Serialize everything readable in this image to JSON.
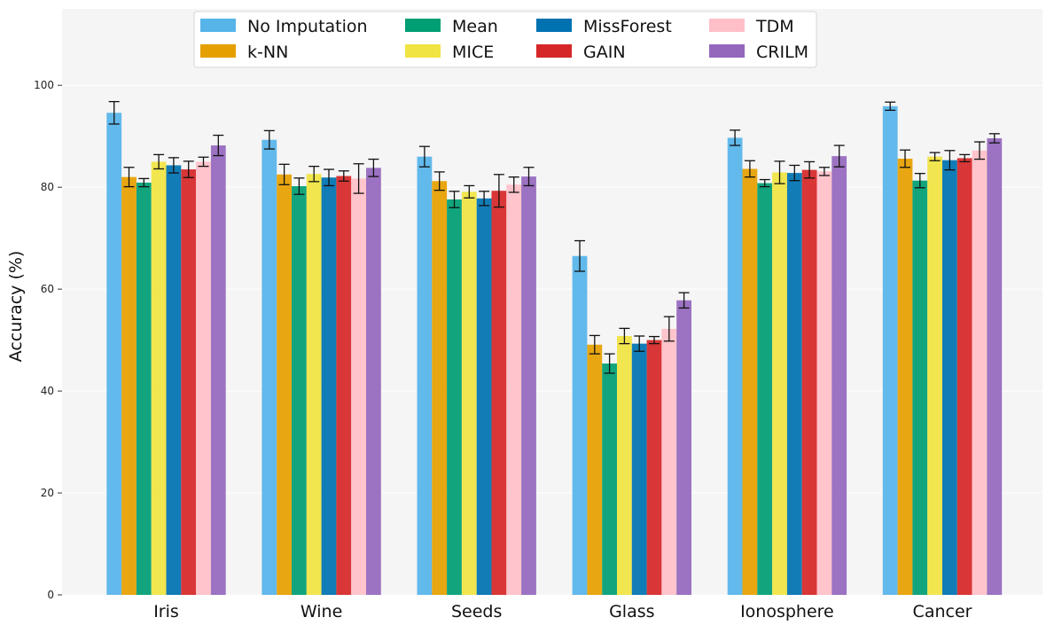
{
  "chart_data": {
    "type": "bar",
    "title": "",
    "xlabel": "",
    "ylabel": "Accuracy (%)",
    "ylim": [
      0,
      115
    ],
    "yticks": [
      0,
      20,
      40,
      60,
      80,
      100
    ],
    "grid": true,
    "legend_position": "top-center",
    "categories": [
      "Iris",
      "Wine",
      "Seeds",
      "Glass",
      "Ionosphere",
      "Cancer"
    ],
    "series": [
      {
        "name": "No Imputation",
        "color": "#56B4E9",
        "values": [
          94.6,
          89.3,
          86.0,
          66.5,
          89.7,
          95.9
        ],
        "errors": [
          2.2,
          1.8,
          2.0,
          3.0,
          1.5,
          0.8
        ]
      },
      {
        "name": "k-NN",
        "color": "#E69F00",
        "values": [
          82.0,
          82.5,
          81.2,
          49.1,
          83.6,
          85.6
        ],
        "errors": [
          1.9,
          2.0,
          1.8,
          1.8,
          1.6,
          1.7
        ]
      },
      {
        "name": "Mean",
        "color": "#009E73",
        "values": [
          80.9,
          80.2,
          77.6,
          45.4,
          80.8,
          81.3
        ],
        "errors": [
          0.8,
          1.6,
          1.6,
          1.9,
          0.7,
          1.4
        ]
      },
      {
        "name": "MICE",
        "color": "#F0E442",
        "values": [
          85.0,
          82.6,
          79.1,
          50.8,
          82.9,
          86.0
        ],
        "errors": [
          1.4,
          1.5,
          1.2,
          1.5,
          2.2,
          0.8
        ]
      },
      {
        "name": "MissForest",
        "color": "#0072B2",
        "values": [
          84.3,
          81.9,
          77.8,
          49.3,
          82.8,
          85.3
        ],
        "errors": [
          1.5,
          1.6,
          1.4,
          1.5,
          1.5,
          1.9
        ]
      },
      {
        "name": "GAIN",
        "color": "#D62728",
        "values": [
          83.5,
          82.2,
          79.3,
          50.0,
          83.4,
          85.7
        ],
        "errors": [
          1.6,
          1.0,
          3.2,
          0.7,
          1.6,
          0.7
        ]
      },
      {
        "name": "TDM",
        "color": "#FFBFC8",
        "values": [
          85.0,
          81.7,
          80.5,
          52.2,
          83.1,
          87.2
        ],
        "errors": [
          0.9,
          2.9,
          1.5,
          2.4,
          0.8,
          1.7
        ]
      },
      {
        "name": "CRILM",
        "color": "#9467BD",
        "values": [
          88.2,
          83.8,
          82.1,
          57.8,
          86.1,
          89.6
        ],
        "errors": [
          2.0,
          1.7,
          1.8,
          1.5,
          2.1,
          0.9
        ]
      }
    ]
  }
}
